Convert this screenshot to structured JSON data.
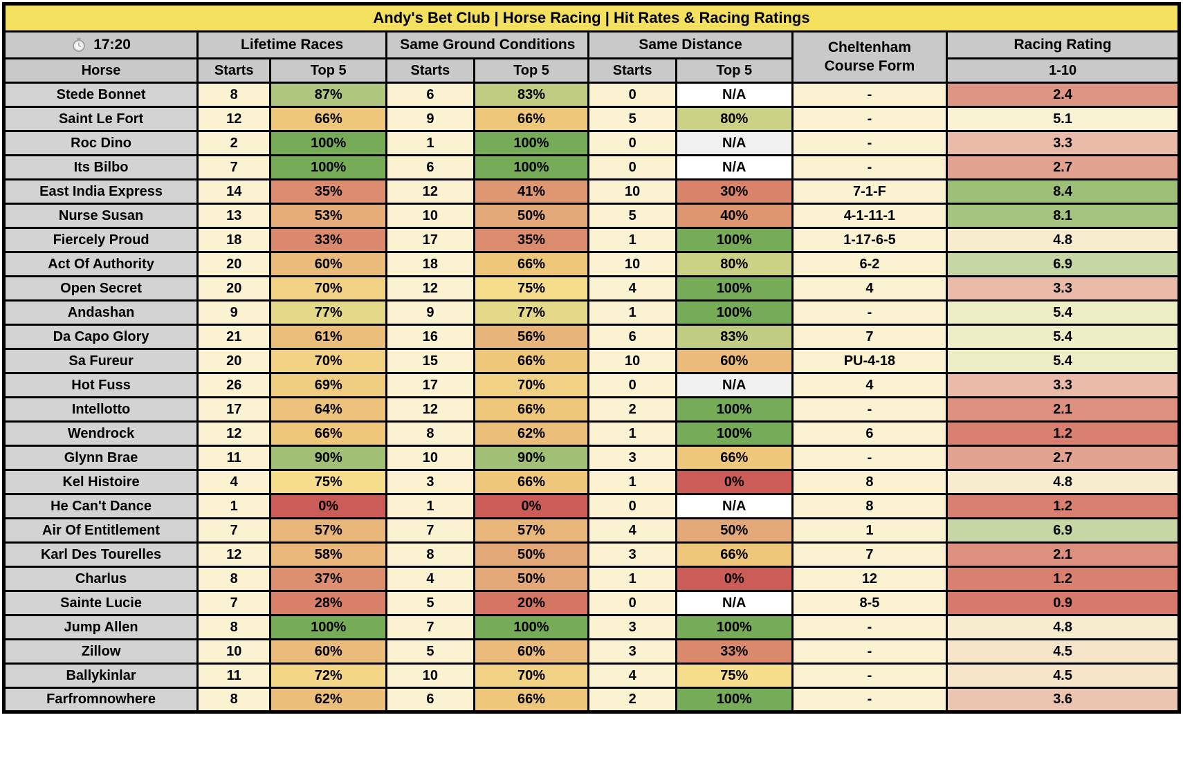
{
  "title": "Andy's Bet Club | Horse Racing | Hit Rates & Racing Ratings",
  "race_time": "17:20",
  "columns": {
    "horse": "Horse",
    "groups": [
      {
        "label": "Lifetime Races"
      },
      {
        "label": "Same Ground Conditions"
      },
      {
        "label": "Same Distance"
      }
    ],
    "starts": "Starts",
    "top5": "Top 5",
    "course_form_line1": "Cheltenham",
    "course_form_line2": "Course Form",
    "rating": "Racing Rating",
    "rating_scale": "1-10"
  },
  "colors": {
    "title_bg": "#F2E05E",
    "header_bg": "#C9C9C9",
    "horse_col_bg": "#D3D3D3",
    "cream": "#FAF2D0",
    "na_white": "#FFFFFF",
    "na_gray": "#F0F0F0",
    "border": "#000000"
  },
  "color_scales": {
    "hit_percent": [
      [
        0,
        "#CC5C58"
      ],
      [
        30,
        "#D9836A"
      ],
      [
        50,
        "#E3A878"
      ],
      [
        66,
        "#EEC77B"
      ],
      [
        75,
        "#F5DD8C"
      ],
      [
        80,
        "#CBD185"
      ],
      [
        87,
        "#AFC67E"
      ],
      [
        100,
        "#76AB57"
      ]
    ],
    "rating": [
      [
        0.9,
        "#D87A6B"
      ],
      [
        2.4,
        "#DE9684"
      ],
      [
        3.3,
        "#E9BBA8"
      ],
      [
        4.5,
        "#F5E4C8"
      ],
      [
        5.1,
        "#FAF3D3"
      ],
      [
        5.4,
        "#EDEDC6"
      ],
      [
        6.9,
        "#C7D7A4"
      ],
      [
        8.4,
        "#9DBF77"
      ],
      [
        10,
        "#86B35F"
      ]
    ]
  },
  "na_gray_rows": [
    "Roc Dino",
    "Hot Fuss"
  ],
  "chart_data": {
    "type": "table",
    "columns": [
      "Horse",
      "Lifetime Starts",
      "Lifetime Top 5",
      "Same Ground Starts",
      "Same Ground Top 5",
      "Same Distance Starts",
      "Same Distance Top 5",
      "Cheltenham Course Form",
      "Racing Rating 1-10"
    ],
    "rows": [
      [
        "Stede Bonnet",
        8,
        "87%",
        6,
        "83%",
        0,
        "N/A",
        "-",
        2.4
      ],
      [
        "Saint Le Fort",
        12,
        "66%",
        9,
        "66%",
        5,
        "80%",
        "-",
        5.1
      ],
      [
        "Roc Dino",
        2,
        "100%",
        1,
        "100%",
        0,
        "N/A",
        "-",
        3.3
      ],
      [
        "Its Bilbo",
        7,
        "100%",
        6,
        "100%",
        0,
        "N/A",
        "-",
        2.7
      ],
      [
        "East India Express",
        14,
        "35%",
        12,
        "41%",
        10,
        "30%",
        "7-1-F",
        8.4
      ],
      [
        "Nurse Susan",
        13,
        "53%",
        10,
        "50%",
        5,
        "40%",
        "4-1-11-1",
        8.1
      ],
      [
        "Fiercely Proud",
        18,
        "33%",
        17,
        "35%",
        1,
        "100%",
        "1-17-6-5",
        4.8
      ],
      [
        "Act Of Authority",
        20,
        "60%",
        18,
        "66%",
        10,
        "80%",
        "6-2",
        6.9
      ],
      [
        "Open Secret",
        20,
        "70%",
        12,
        "75%",
        4,
        "100%",
        "4",
        3.3
      ],
      [
        "Andashan",
        9,
        "77%",
        9,
        "77%",
        1,
        "100%",
        "-",
        5.4
      ],
      [
        "Da Capo Glory",
        21,
        "61%",
        16,
        "56%",
        6,
        "83%",
        "7",
        5.4
      ],
      [
        "Sa Fureur",
        20,
        "70%",
        15,
        "66%",
        10,
        "60%",
        "PU-4-18",
        5.4
      ],
      [
        "Hot Fuss",
        26,
        "69%",
        17,
        "70%",
        0,
        "N/A",
        "4",
        3.3
      ],
      [
        "Intellotto",
        17,
        "64%",
        12,
        "66%",
        2,
        "100%",
        "-",
        2.1
      ],
      [
        "Wendrock",
        12,
        "66%",
        8,
        "62%",
        1,
        "100%",
        "6",
        1.2
      ],
      [
        "Glynn Brae",
        11,
        "90%",
        10,
        "90%",
        3,
        "66%",
        "-",
        2.7
      ],
      [
        "Kel Histoire",
        4,
        "75%",
        3,
        "66%",
        1,
        "0%",
        "8",
        4.8
      ],
      [
        "He Can't Dance",
        1,
        "0%",
        1,
        "0%",
        0,
        "N/A",
        "8",
        1.2
      ],
      [
        "Air Of Entitlement",
        7,
        "57%",
        7,
        "57%",
        4,
        "50%",
        "1",
        6.9
      ],
      [
        "Karl Des Tourelles",
        12,
        "58%",
        8,
        "50%",
        3,
        "66%",
        "7",
        2.1
      ],
      [
        "Charlus",
        8,
        "37%",
        4,
        "50%",
        1,
        "0%",
        "12",
        1.2
      ],
      [
        "Sainte Lucie",
        7,
        "28%",
        5,
        "20%",
        0,
        "N/A",
        "8-5",
        0.9
      ],
      [
        "Jump Allen",
        8,
        "100%",
        7,
        "100%",
        3,
        "100%",
        "-",
        4.8
      ],
      [
        "Zillow",
        10,
        "60%",
        5,
        "60%",
        3,
        "33%",
        "-",
        4.5
      ],
      [
        "Ballykinlar",
        11,
        "72%",
        10,
        "70%",
        4,
        "75%",
        "-",
        4.5
      ],
      [
        "Farfromnowhere",
        8,
        "62%",
        6,
        "66%",
        2,
        "100%",
        "-",
        3.6
      ]
    ]
  }
}
